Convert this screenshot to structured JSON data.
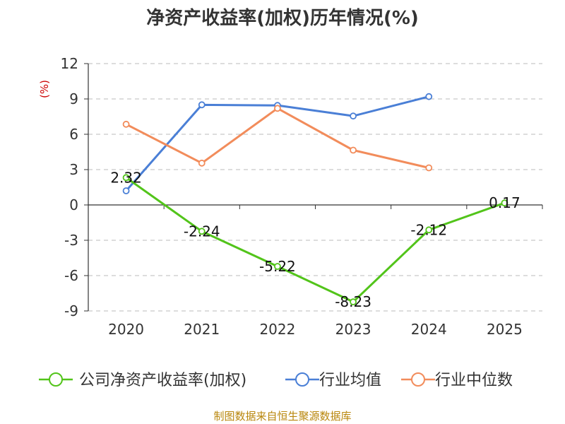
{
  "chart_data": {
    "type": "line",
    "title": "净资产收益率(加权)历年情况(%)",
    "ylabel": "(%)",
    "categories": [
      "2020",
      "2021",
      "2022",
      "2023",
      "2024",
      "2025"
    ],
    "ylim": [
      -9,
      12
    ],
    "yticks": [
      12,
      9,
      6,
      3,
      0,
      -3,
      -6,
      -9
    ],
    "grid": true,
    "legend_position": "bottom",
    "series": [
      {
        "name": "公司净资产收益率(加权)",
        "color": "#52c41a",
        "values": [
          2.32,
          -2.24,
          -5.22,
          -8.23,
          -2.12,
          0.17
        ],
        "labels": [
          "2.32",
          "-2.24",
          "-5.22",
          "-8.23",
          "-2.12",
          "0.17"
        ]
      },
      {
        "name": "行业均值",
        "color": "#4a7fd6",
        "values": [
          1.2,
          8.5,
          8.45,
          7.55,
          9.2,
          null
        ]
      },
      {
        "name": "行业中位数",
        "color": "#f28c5b",
        "values": [
          6.85,
          3.55,
          8.2,
          4.65,
          3.15,
          null
        ]
      }
    ]
  },
  "source": "制图数据来自恒生聚源数据库"
}
